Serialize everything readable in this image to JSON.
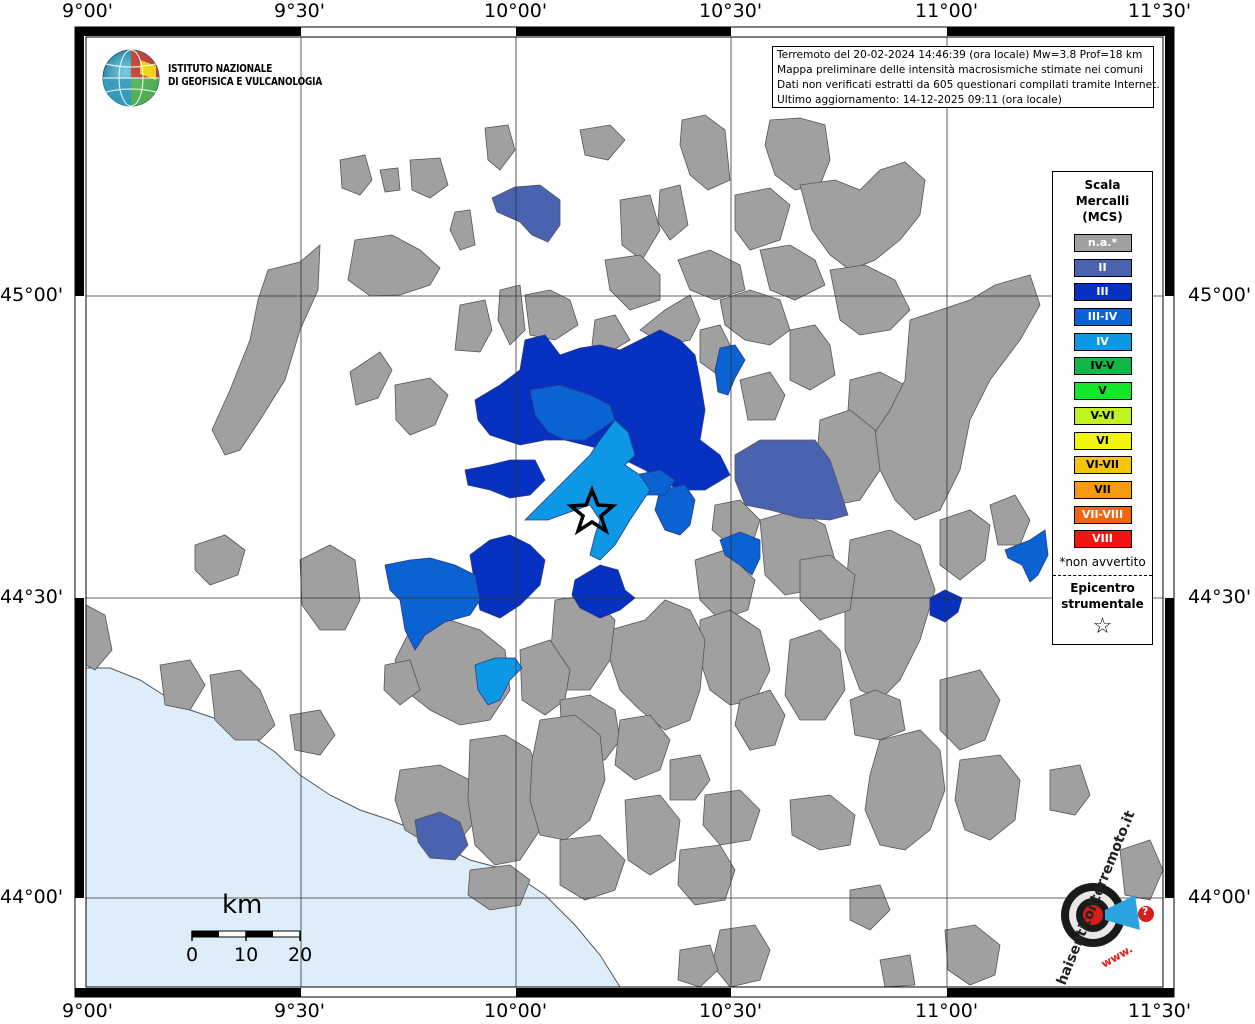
{
  "map": {
    "lon_labels": [
      "9°00'",
      "9°30'",
      "10°00'",
      "10°30'",
      "11°00'",
      "11°30'"
    ],
    "lat_labels": [
      "45°00'",
      "44°30'",
      "44°00'"
    ],
    "sea_color": "#ddeefa",
    "land_color": "#a0a0a0",
    "epicenter_icon": "star-icon"
  },
  "institute": {
    "name_line1": "ISTITUTO NAZIONALE",
    "name_line2": "DI GEOFISICA E VULCANOLOGIA"
  },
  "info": {
    "line1": "Terremoto del 20-02-2024 14:46:39 (ora locale) Mw=3.8 Prof=18 km",
    "line2": "Mappa preliminare delle intensità macrosismiche stimate nei comuni",
    "line3": "Dati non verificati estratti da 605 questionari compilati tramite Internet.",
    "line4": "Ultimo aggiornamento: 14-12-2025 09:11 (ora locale)"
  },
  "legend": {
    "title_line1": "Scala",
    "title_line2": "Mercalli",
    "title_line3": "(MCS)",
    "items": [
      {
        "label": "n.a.*",
        "color": "#a0a0a0"
      },
      {
        "label": "II",
        "color": "#4a63b0"
      },
      {
        "label": "III",
        "color": "#0530c0"
      },
      {
        "label": "III-IV",
        "color": "#0a62d3"
      },
      {
        "label": "IV",
        "color": "#0d98e6"
      },
      {
        "label": "IV-V",
        "color": "#10b848"
      },
      {
        "label": "V",
        "color": "#14e628"
      },
      {
        "label": "V-VI",
        "color": "#bff21e"
      },
      {
        "label": "VI",
        "color": "#f4f40a"
      },
      {
        "label": "VI-VII",
        "color": "#f4c40a"
      },
      {
        "label": "VII",
        "color": "#f59a0a"
      },
      {
        "label": "VII-VIII",
        "color": "#f5640a"
      },
      {
        "label": "VIII",
        "color": "#f51414"
      }
    ],
    "note": "*non avvertito",
    "epicenter_line1": "Epicentro",
    "epicenter_line2": "strumentale"
  },
  "scalebar": {
    "unit": "km",
    "labels": [
      "0",
      "10",
      "20"
    ]
  },
  "hst_logo": {
    "text": "haisentitoilterremoto.it",
    "url_text": "www.",
    "question": "?"
  }
}
